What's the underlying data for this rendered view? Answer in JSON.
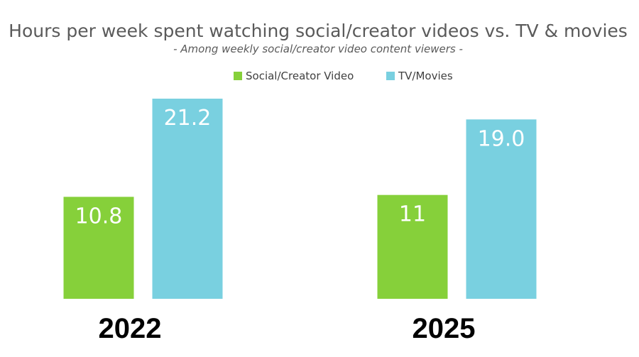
{
  "chart_data": {
    "type": "bar",
    "title": "Hours per week spent watching social/creator videos vs. TV & movies",
    "subtitle": "- Among weekly social/creator video content viewers -",
    "categories": [
      "2022",
      "2025"
    ],
    "series": [
      {
        "name": "Social/Creator Video",
        "values": [
          10.8,
          11
        ],
        "labels": [
          "10.8",
          "11"
        ],
        "color": "#86d03a"
      },
      {
        "name": "TV/Movies",
        "values": [
          21.2,
          19.0
        ],
        "labels": [
          "21.2",
          "19.0"
        ],
        "color": "#79d0e0"
      }
    ],
    "legend": "top-center",
    "grid": false,
    "ylim": [
      0,
      21.2
    ]
  }
}
